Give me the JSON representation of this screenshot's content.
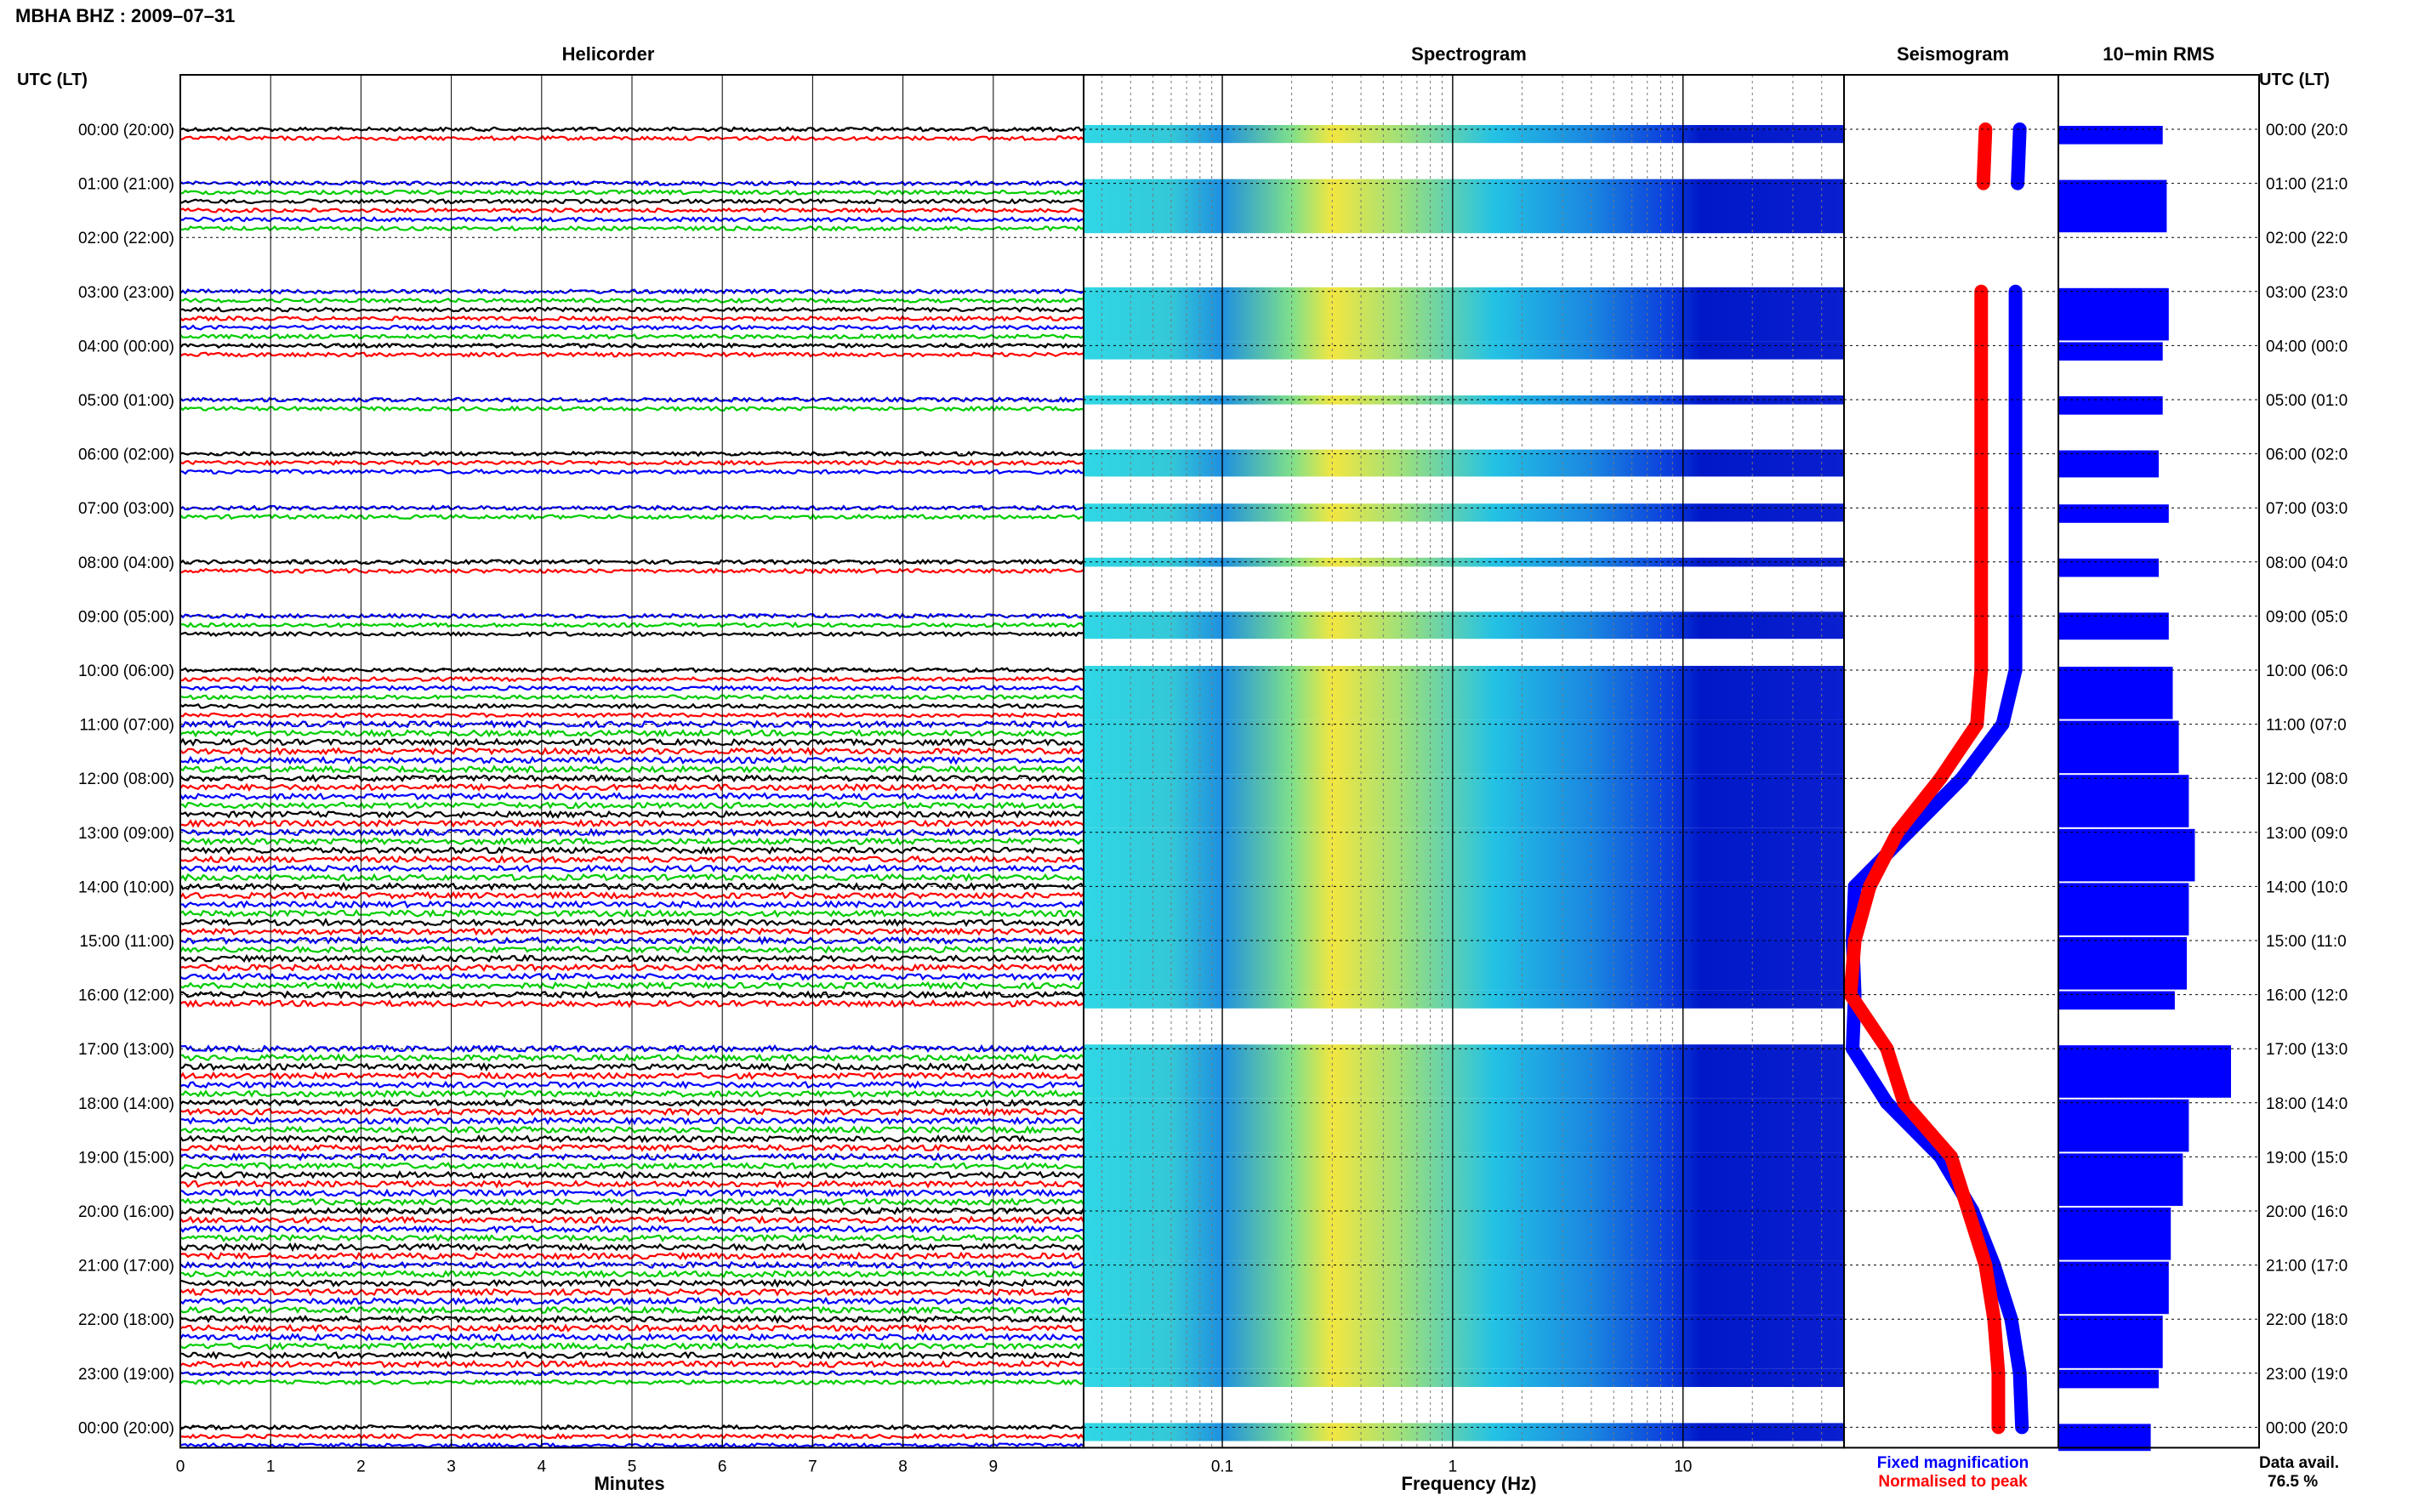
{
  "title": "MBHA BHZ : 2009–07–31",
  "time_axis_label": "UTC (LT)",
  "panels": {
    "helicorder": "Helicorder",
    "spectrogram": "Spectrogram",
    "seismogram": "Seismogram",
    "rms": "10−min RMS"
  },
  "row_labels": [
    "00:00 (20:00)",
    "01:00 (21:00)",
    "02:00 (22:00)",
    "03:00 (23:00)",
    "04:00 (00:00)",
    "05:00 (01:00)",
    "06:00 (02:00)",
    "07:00 (03:00)",
    "08:00 (04:00)",
    "09:00 (05:00)",
    "10:00 (06:00)",
    "11:00 (07:00)",
    "12:00 (08:00)",
    "13:00 (09:00)",
    "14:00 (10:00)",
    "15:00 (11:00)",
    "16:00 (12:00)",
    "17:00 (13:00)",
    "18:00 (14:00)",
    "19:00 (15:00)",
    "20:00 (16:00)",
    "21:00 (17:00)",
    "22:00 (18:00)",
    "23:00 (19:00)",
    "00:00 (20:00)"
  ],
  "row_labels_right": [
    "00:00 (20:0",
    "01:00 (21:0",
    "02:00 (22:0",
    "03:00 (23:0",
    "04:00 (00:0",
    "05:00 (01:0",
    "06:00 (02:0",
    "07:00 (03:0",
    "08:00 (04:0",
    "09:00 (05:0",
    "10:00 (06:0",
    "11:00 (07:0",
    "12:00 (08:0",
    "13:00 (09:0",
    "14:00 (10:0",
    "15:00 (11:0",
    "16:00 (12:0",
    "17:00 (13:0",
    "18:00 (14:0",
    "19:00 (15:0",
    "20:00 (16:0",
    "21:00 (17:0",
    "22:00 (18:0",
    "23:00 (19:0",
    "00:00 (20:0"
  ],
  "legend": {
    "fixed": "Fixed magnification",
    "normalised": "Normalised to peak"
  },
  "data_avail": {
    "label": "Data avail.",
    "value": "76.5 %"
  },
  "colors": {
    "black": "#000000",
    "red": "#ff0000",
    "blue": "#0000ff",
    "green": "#00cc00",
    "rms_bar": "#0000ff"
  },
  "chart_data": [
    {
      "type": "line",
      "name": "helicorder",
      "xlabel": "Minutes",
      "x_ticks": [
        "0",
        "1",
        "2",
        "3",
        "4",
        "5",
        "6",
        "7",
        "8",
        "9"
      ],
      "xlim": [
        0,
        10
      ],
      "trace_colors_cycle": [
        "black",
        "red",
        "blue",
        "green"
      ],
      "hour_availability": [
        0.33,
        1,
        0,
        1,
        0.33,
        0.17,
        0.5,
        0.33,
        0.17,
        0.5,
        1,
        1,
        1,
        1,
        1,
        1,
        0.33,
        1,
        1,
        1,
        1,
        1,
        1,
        0.33,
        0.5
      ]
    },
    {
      "type": "heatmap",
      "name": "spectrogram",
      "xlabel": "Frequency (Hz)",
      "x_scale": "log",
      "x_ticks": [
        "0.1",
        "1",
        "10"
      ],
      "xlim": [
        0.025,
        50
      ]
    },
    {
      "type": "line",
      "name": "seismogram",
      "series": [
        {
          "name": "Fixed magnification",
          "color": "blue",
          "hours": [
            0,
            1,
            3,
            4,
            5,
            6,
            7,
            8,
            9,
            10,
            11,
            12,
            13,
            14,
            15,
            16,
            17,
            18,
            19,
            20,
            21,
            22,
            23,
            24
          ],
          "x": [
            0.82,
            0.81,
            0.8,
            0.8,
            0.8,
            0.8,
            0.8,
            0.8,
            0.8,
            0.8,
            0.74,
            0.55,
            0.3,
            0.05,
            0.04,
            0.05,
            0.04,
            0.2,
            0.45,
            0.6,
            0.7,
            0.78,
            0.82,
            0.83
          ]
        },
        {
          "name": "Normalised to peak",
          "color": "red",
          "hours": [
            0,
            1,
            3,
            4,
            5,
            6,
            7,
            8,
            9,
            10,
            11,
            12,
            13,
            14,
            15,
            16,
            17,
            18,
            19,
            20,
            21,
            22,
            23,
            24
          ],
          "x": [
            0.66,
            0.65,
            0.64,
            0.64,
            0.64,
            0.64,
            0.64,
            0.64,
            0.64,
            0.64,
            0.62,
            0.45,
            0.25,
            0.12,
            0.05,
            0.03,
            0.2,
            0.28,
            0.5,
            0.58,
            0.66,
            0.7,
            0.72,
            0.72
          ]
        }
      ]
    },
    {
      "type": "bar",
      "name": "rms",
      "relative_values": [
        0.52,
        0.54,
        0,
        0.55,
        0.52,
        0.52,
        0.5,
        0.55,
        0.5,
        0.55,
        0.57,
        0.6,
        0.65,
        0.68,
        0.65,
        0.64,
        0.58,
        0.86,
        0.65,
        0.62,
        0.56,
        0.55,
        0.52,
        0.5,
        0.46
      ]
    }
  ]
}
